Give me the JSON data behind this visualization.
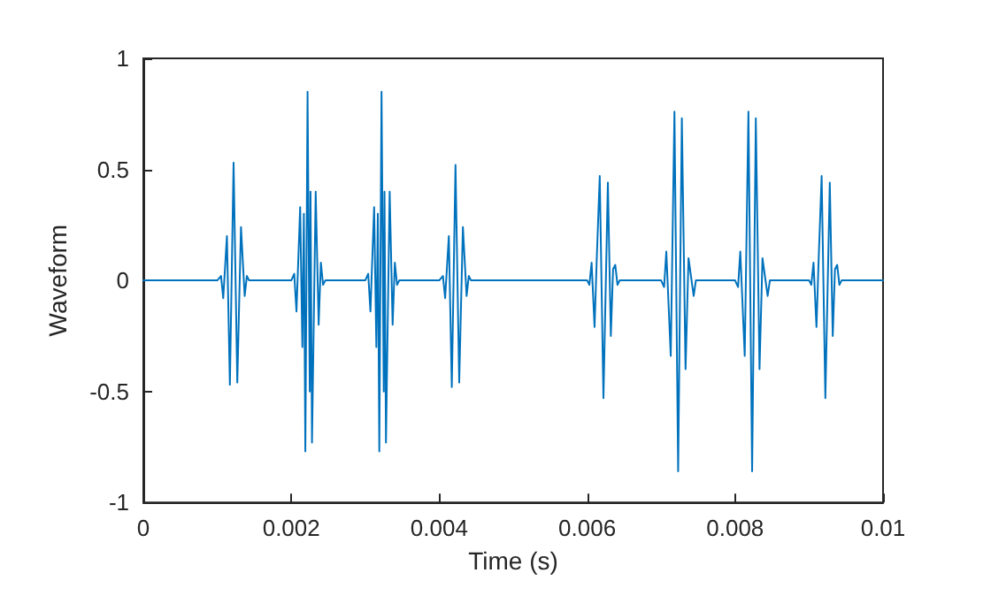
{
  "chart_data": {
    "type": "line",
    "xlabel": "Time (s)",
    "ylabel": "Waveform",
    "xlim": [
      0,
      0.01
    ],
    "xticks": [
      0,
      0.002,
      0.004,
      0.006,
      0.008,
      0.01
    ],
    "ylim": [
      -1,
      1
    ],
    "yticks": [
      -1,
      -0.5,
      0,
      0.5,
      1
    ],
    "marker": "none",
    "line_style": "solid",
    "series": [
      {
        "color": "#0072bd",
        "x": [
          0,
          0.001,
          0.00105,
          0.00108,
          0.00113,
          0.00117,
          0.00122,
          0.00127,
          0.00132,
          0.00137,
          0.0014,
          0.00143,
          0.002,
          0.00204,
          0.00207,
          0.00212,
          0.00215,
          0.00217,
          0.00219,
          0.00222,
          0.00225,
          0.00226,
          0.00228,
          0.00233,
          0.00237,
          0.0024,
          0.00243,
          0.00246,
          0.003,
          0.00304,
          0.00307,
          0.00312,
          0.00315,
          0.00317,
          0.00319,
          0.00322,
          0.00325,
          0.00326,
          0.00328,
          0.00333,
          0.00337,
          0.0034,
          0.00343,
          0.00346,
          0.004,
          0.00405,
          0.00408,
          0.00413,
          0.00417,
          0.00422,
          0.00427,
          0.00432,
          0.00437,
          0.0044,
          0.00443,
          0.006,
          0.00603,
          0.00606,
          0.0061,
          0.00613,
          0.00617,
          0.00622,
          0.00628,
          0.00632,
          0.00635,
          0.00638,
          0.00641,
          0.00644,
          0.007,
          0.00704,
          0.00707,
          0.00713,
          0.00718,
          0.00723,
          0.00728,
          0.00733,
          0.00737,
          0.00744,
          0.00747,
          0.008,
          0.00804,
          0.00807,
          0.00813,
          0.00818,
          0.00823,
          0.00828,
          0.00833,
          0.00837,
          0.00844,
          0.00847,
          0.009,
          0.00903,
          0.00906,
          0.0091,
          0.00913,
          0.00917,
          0.00922,
          0.00928,
          0.00932,
          0.00935,
          0.00938,
          0.00941,
          0.00944,
          0.01
        ],
        "values": [
          0,
          0,
          0.02,
          -0.08,
          0.2,
          -0.47,
          0.53,
          -0.46,
          0.24,
          -0.07,
          0.02,
          0,
          0,
          0.03,
          -0.14,
          0.33,
          -0.3,
          0.3,
          -0.77,
          0.85,
          -0.5,
          0.4,
          -0.73,
          0.4,
          -0.2,
          0.08,
          -0.02,
          0,
          0,
          0.03,
          -0.14,
          0.33,
          -0.3,
          0.3,
          -0.77,
          0.85,
          -0.5,
          0.4,
          -0.73,
          0.4,
          -0.2,
          0.08,
          -0.02,
          0,
          0,
          0.02,
          -0.08,
          0.2,
          -0.48,
          0.52,
          -0.46,
          0.24,
          -0.07,
          0.02,
          0,
          0,
          -0.02,
          0.08,
          -0.21,
          0.1,
          0.47,
          -0.53,
          0.44,
          -0.25,
          0.05,
          0.07,
          -0.02,
          0,
          0,
          -0.03,
          0.13,
          -0.34,
          0.76,
          -0.86,
          0.73,
          -0.4,
          0.1,
          -0.07,
          0,
          0,
          -0.03,
          0.13,
          -0.34,
          0.76,
          -0.86,
          0.73,
          -0.4,
          0.1,
          -0.07,
          0,
          0,
          -0.02,
          0.08,
          -0.21,
          0.1,
          0.47,
          -0.53,
          0.44,
          -0.25,
          0.05,
          0.07,
          -0.02,
          0,
          0
        ]
      }
    ]
  }
}
